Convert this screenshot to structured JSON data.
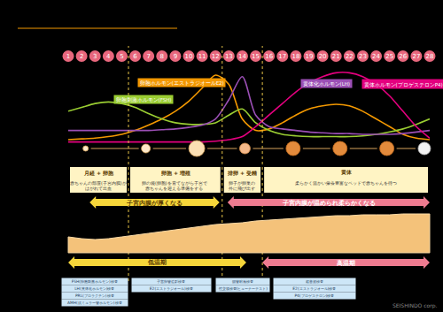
{
  "chart_data": {
    "type": "line",
    "x": [
      1,
      2,
      3,
      4,
      5,
      6,
      7,
      8,
      9,
      10,
      11,
      12,
      13,
      14,
      15,
      16,
      17,
      18,
      19,
      20,
      21,
      22,
      23,
      24,
      25,
      26,
      27,
      28
    ],
    "xlim": [
      1,
      28
    ],
    "xticks": [
      1,
      2,
      3,
      4,
      5,
      6,
      7,
      8,
      9,
      10,
      11,
      12,
      13,
      14,
      15,
      16,
      17,
      18,
      19,
      20,
      21,
      22,
      23,
      24,
      25,
      26,
      27,
      28
    ],
    "ylim": [
      0,
      100
    ],
    "tick_labels": "x",
    "grid": false,
    "series": [
      {
        "name": "卵胞ホルモン(エストラジオールE2)",
        "color": "#f39800",
        "values": [
          8,
          9,
          10,
          12,
          15,
          20,
          27,
          35,
          45,
          58,
          75,
          92,
          80,
          35,
          20,
          22,
          30,
          40,
          48,
          52,
          54,
          52,
          45,
          35,
          25,
          15,
          10,
          8
        ]
      },
      {
        "name": "卵胞刺激ホルモン(FSH)",
        "color": "#9acd32",
        "values": [
          45,
          50,
          55,
          57,
          55,
          50,
          42,
          35,
          30,
          28,
          28,
          30,
          40,
          48,
          30,
          20,
          15,
          13,
          12,
          12,
          12,
          12,
          13,
          15,
          18,
          22,
          28,
          35
        ]
      },
      {
        "name": "黄体化ホルモン(LH)",
        "color": "#9b4fb5",
        "values": [
          20,
          20,
          20,
          20,
          20,
          20,
          20,
          21,
          22,
          24,
          27,
          35,
          60,
          90,
          40,
          25,
          22,
          20,
          18,
          17,
          16,
          16,
          15,
          15,
          15,
          16,
          18,
          20
        ]
      },
      {
        "name": "黄体ホルモン(プロゲステロンP4)",
        "color": "#e4007f",
        "values": [
          5,
          5,
          5,
          5,
          5,
          5,
          5,
          5,
          5,
          5,
          5,
          6,
          8,
          12,
          25,
          40,
          55,
          70,
          82,
          90,
          95,
          95,
          90,
          80,
          65,
          45,
          25,
          10
        ]
      }
    ]
  },
  "dividers": [
    5.5,
    12.5,
    15.5
  ],
  "phases": [
    {
      "days": [
        1,
        5.5
      ],
      "title": "月経 + 卵胞",
      "text": [
        "赤ちゃんの部屋(子宮内膜)が",
        "はがれて出血"
      ]
    },
    {
      "days": [
        5.5,
        12.5
      ],
      "title": "卵胞 + 増殖",
      "text": [
        "卵の袋(卵胞)を育てながら子宮で",
        "赤ちゃんを迎える準備をする"
      ]
    },
    {
      "days": [
        12.5,
        15.5
      ],
      "title": "排卵 + 受精",
      "text": [
        "卵子が卵巣の",
        "外に飛び出す"
      ]
    },
    {
      "days": [
        15.5,
        28
      ],
      "title": "黄体",
      "text": [
        "柔らかく温かい栄養豊富なベッドで赤ちゃんを待つ"
      ]
    }
  ],
  "endometrium": {
    "arrows": [
      {
        "label": "子宮内膜が厚くなる",
        "color": "#f6d63a",
        "days": [
          2.6,
          12.3
        ]
      },
      {
        "label": "子宮内膜が温められ柔らかくなる",
        "color": "#ee7b90",
        "days": [
          12.9,
          28
        ]
      }
    ],
    "thickness": [
      18,
      16,
      15,
      16,
      18,
      20,
      22,
      24,
      26,
      28,
      30,
      32,
      33,
      34,
      36,
      37,
      38,
      39,
      40,
      41,
      42,
      42,
      43,
      43,
      43,
      44,
      44,
      44
    ]
  },
  "temperature": {
    "arrows": [
      {
        "label": "低温期",
        "color": "#f6d63a",
        "days": [
          1,
          14.3
        ]
      },
      {
        "label": "高温期",
        "color": "#ee7b90",
        "days": [
          15.5,
          28
        ]
      }
    ]
  },
  "tests": [
    {
      "days": [
        0.6,
        5.4
      ],
      "items": [
        "FSH(卵胞刺激ホルモン)検査",
        "LH(黄体化ホルモン)検査",
        "PRL(プロラクチン)検査",
        "AMH(抗ミュラー管ホルモン)検査"
      ]
    },
    {
      "days": [
        5.8,
        11.6
      ],
      "items": [
        "子宮卵管造影検査",
        "E2(エストラジオール)検査"
      ]
    },
    {
      "days": [
        12.1,
        16.0
      ],
      "items": [
        "頸管粘液検査",
        "性交後検査(ヒューナーテスト)"
      ]
    },
    {
      "days": [
        16.4,
        22.4
      ],
      "items": [
        "超音波検査",
        "E2(エストラジオール)検査",
        "P4(プロゲステロン)検査"
      ]
    }
  ],
  "credit": "SEISHINDO corp."
}
